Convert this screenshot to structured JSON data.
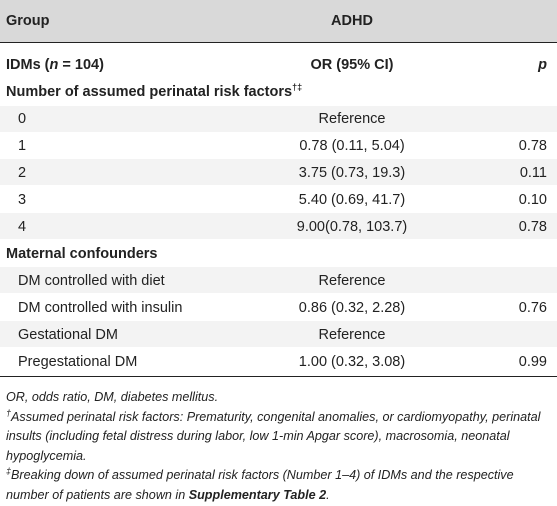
{
  "header": {
    "group_label": "Group",
    "outcome_label": "ADHD"
  },
  "subheader": {
    "cohort_prefix": "IDMs (",
    "cohort_n_var": "n",
    "cohort_n_value": " = 104)",
    "or_label": "OR (95% CI)",
    "p_label": "p"
  },
  "section_risk": {
    "title": "Number of assumed perinatal risk factors",
    "title_sup": "†‡",
    "rows": [
      {
        "label": "0",
        "or": "Reference",
        "p": ""
      },
      {
        "label": "1",
        "or": "0.78 (0.11, 5.04)",
        "p": "0.78"
      },
      {
        "label": "2",
        "or": "3.75 (0.73, 19.3)",
        "p": "0.11"
      },
      {
        "label": "3",
        "or": "5.40 (0.69, 41.7)",
        "p": "0.10"
      },
      {
        "label": "4",
        "or": "9.00(0.78, 103.7)",
        "p": "0.78"
      }
    ]
  },
  "section_maternal": {
    "title": "Maternal confounders",
    "rows": [
      {
        "label": "DM controlled with diet",
        "or": "Reference",
        "p": ""
      },
      {
        "label": "DM controlled with insulin",
        "or": "0.86 (0.32, 2.28)",
        "p": "0.76"
      },
      {
        "label": "Gestational DM",
        "or": "Reference",
        "p": ""
      },
      {
        "label": "Pregestational DM",
        "or": "1.00 (0.32, 3.08)",
        "p": "0.99"
      }
    ]
  },
  "footnotes": {
    "abbrev": "OR, odds ratio, DM, diabetes mellitus.",
    "dagger_mark": "†",
    "dagger_text": "Assumed perinatal risk factors: Prematurity, congenital anomalies, or cardiomyopathy, perinatal insults (including fetal distress during labor, low 1-min Apgar score), macrosomia, neonatal hypoglycemia.",
    "ddagger_mark": "‡",
    "ddagger_text": "Breaking down of assumed perinatal risk factors (Number 1–4) of IDMs and the respective number of patients are shown in ",
    "ddagger_bold": "Supplementary Table 2",
    "ddagger_end": "."
  }
}
